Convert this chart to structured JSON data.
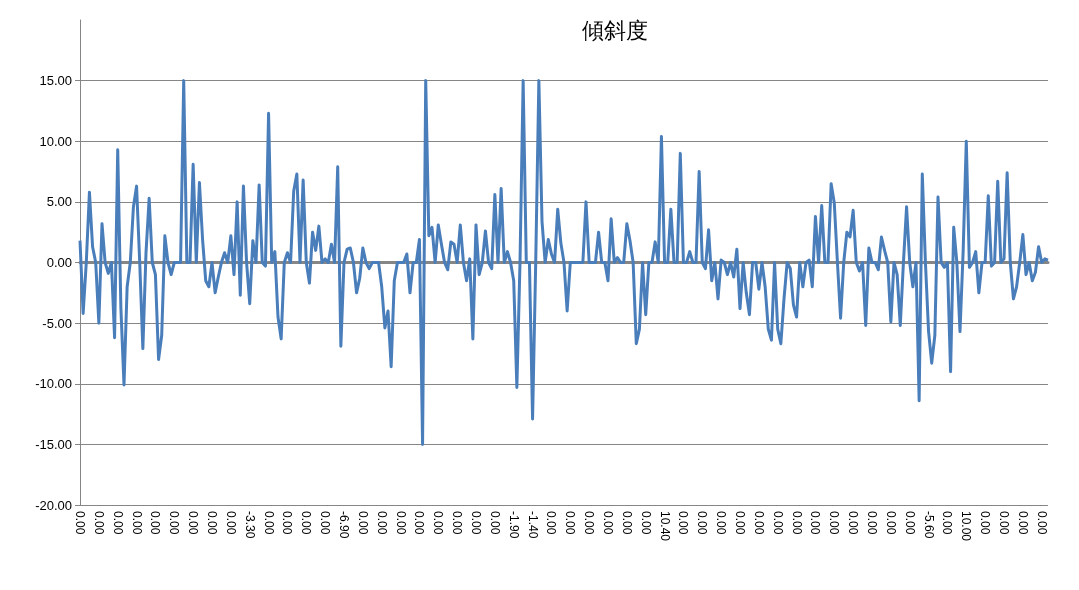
{
  "chart_data": {
    "type": "line",
    "title": "傾斜度",
    "categories": [
      "0.00",
      null,
      null,
      null,
      null,
      null,
      "0.00",
      null,
      null,
      null,
      null,
      null,
      "0.00",
      null,
      null,
      null,
      null,
      null,
      "0.00",
      null,
      null,
      null,
      null,
      null,
      "0.00",
      null,
      null,
      null,
      null,
      null,
      "0.00",
      null,
      null,
      null,
      null,
      null,
      "0.00",
      null,
      null,
      null,
      null,
      null,
      "0.00",
      null,
      null,
      null,
      null,
      null,
      "0.00",
      null,
      null,
      null,
      null,
      null,
      "-3.30",
      null,
      null,
      null,
      null,
      null,
      "0.00",
      null,
      null,
      null,
      null,
      null,
      "0.00",
      null,
      null,
      null,
      null,
      null,
      "0.00",
      null,
      null,
      null,
      null,
      null,
      "0.00",
      null,
      null,
      null,
      null,
      null,
      "-6.90",
      null,
      null,
      null,
      null,
      null,
      "0.00",
      null,
      null,
      null,
      null,
      null,
      "0.00",
      null,
      null,
      null,
      null,
      null,
      "0.00",
      null,
      null,
      null,
      null,
      null,
      "0.00",
      null,
      null,
      null,
      null,
      null,
      "0.00",
      null,
      null,
      null,
      null,
      null,
      "0.00",
      null,
      null,
      null,
      null,
      null,
      "0.00",
      null,
      null,
      null,
      null,
      null,
      "0.00",
      null,
      null,
      null,
      null,
      null,
      "-1.90",
      null,
      null,
      null,
      null,
      null,
      "-1.40",
      null,
      null,
      null,
      null,
      null,
      "0.00",
      null,
      null,
      null,
      null,
      null,
      "0.00",
      null,
      null,
      null,
      null,
      null,
      "0.00",
      null,
      null,
      null,
      null,
      null,
      "0.00",
      null,
      null,
      null,
      null,
      null,
      "0.00",
      null,
      null,
      null,
      null,
      null,
      "0.00",
      null,
      null,
      null,
      null,
      null,
      "10.40",
      null,
      null,
      null,
      null,
      null,
      "0.00",
      null,
      null,
      null,
      null,
      null,
      "0.00",
      null,
      null,
      null,
      null,
      null,
      "0.00",
      null,
      null,
      null,
      null,
      null,
      "0.00",
      null,
      null,
      null,
      null,
      null,
      "0.00",
      null,
      null,
      null,
      null,
      null,
      "0.00",
      null,
      null,
      null,
      null,
      null,
      "0.00",
      null,
      null,
      null,
      null,
      null,
      "0.00",
      null,
      null,
      null,
      null,
      null,
      "0.00",
      null,
      null,
      null,
      null,
      null,
      "0.00",
      null,
      null,
      null,
      null,
      null,
      "0.00",
      null,
      null,
      null,
      null,
      null,
      "0.00",
      null,
      null,
      null,
      null,
      null,
      "0.00",
      null,
      null,
      null,
      null,
      null,
      "-5.60",
      null,
      null,
      null,
      null,
      null,
      "0.00",
      null,
      null,
      null,
      null,
      null,
      "10.00",
      null,
      null,
      null,
      null,
      null,
      "0.00",
      null,
      null,
      null,
      null,
      null,
      "0.00",
      null,
      null,
      null,
      null,
      null,
      "0.00",
      null,
      null,
      null,
      null,
      null,
      "0.00",
      null,
      null
    ],
    "series": [
      {
        "color": "#4a7ebb",
        "values": [
          1.8,
          -4.2,
          0,
          5.8,
          1.3,
          0,
          -5.0,
          3.2,
          0,
          -0.9,
          0,
          -6.2,
          9.3,
          -3.7,
          -10.1,
          -2,
          0,
          4.6,
          6.3,
          0,
          -7.1,
          0.8,
          5.3,
          0,
          -1,
          -8.0,
          -6.0,
          2.2,
          0,
          -1.0,
          0,
          0,
          0,
          15,
          0,
          0,
          8.1,
          0,
          6.6,
          1.9,
          -1.5,
          -2.0,
          0,
          -2.5,
          -1.2,
          0,
          0.8,
          0,
          2.2,
          -1,
          5.0,
          -2.7,
          6.3,
          0,
          -3.4,
          1.8,
          0,
          6.4,
          0,
          -0.3,
          12.3,
          0,
          0.9,
          -4.5,
          -6.3,
          0,
          0.8,
          0,
          5.9,
          7.3,
          0,
          6.8,
          0,
          -1.7,
          2.5,
          1.0,
          3.0,
          0,
          0.3,
          0,
          1.5,
          0,
          7.9,
          -6.9,
          0,
          1.1,
          1.2,
          0,
          -2.5,
          -1.3,
          1.2,
          0,
          -0.5,
          0,
          0,
          0,
          -2,
          -5.4,
          -4,
          -8.6,
          -1.5,
          0,
          0,
          0,
          0.7,
          -2.5,
          0,
          0,
          1.9,
          -15,
          15,
          2.2,
          2.9,
          0,
          3.1,
          1.5,
          0,
          -0.6,
          1.7,
          1.5,
          0,
          3.1,
          0,
          -1.5,
          0.3,
          -6.3,
          3.1,
          -1,
          0,
          2.6,
          0,
          -0.5,
          5.6,
          0,
          6.1,
          0,
          0.9,
          0,
          -1.5,
          -10.3,
          0,
          15,
          0,
          0,
          -12.9,
          0,
          15,
          3.4,
          0,
          1.9,
          0.7,
          0,
          4.4,
          1.6,
          0,
          -4.0,
          0,
          0,
          0,
          0,
          0,
          5.0,
          0,
          0,
          0,
          2.5,
          0,
          0,
          -1.5,
          3.6,
          0,
          0.4,
          0,
          0,
          3.2,
          1.8,
          0,
          -6.7,
          -5.5,
          0,
          -4.3,
          0,
          0,
          1.7,
          0,
          10.4,
          0,
          0,
          4.4,
          0,
          0,
          9.0,
          0,
          0,
          0.9,
          0,
          0,
          7.5,
          0,
          -0.5,
          2.7,
          -1.5,
          0,
          -3.0,
          0.2,
          0,
          -1,
          0,
          -1.2,
          1.1,
          -3.8,
          0,
          -2.5,
          -4.3,
          0,
          0,
          -2.2,
          0,
          -2,
          -5.5,
          -6.4,
          0,
          -5.5,
          -6.7,
          -3.0,
          0,
          -0.5,
          -3.5,
          -4.5,
          0,
          -2,
          0,
          0.2,
          -2.0,
          3.8,
          0,
          4.7,
          0,
          0,
          6.5,
          4.9,
          0,
          -4.6,
          0,
          2.5,
          2.1,
          4.3,
          0,
          -0.7,
          0,
          -5.2,
          1.2,
          0,
          0,
          -0.6,
          2.1,
          1.0,
          0,
          -4.9,
          0,
          -1.0,
          -5.2,
          0,
          4.6,
          0,
          -2.0,
          0,
          -11.4,
          7.3,
          0,
          -5.7,
          -8.3,
          -6.0,
          5.4,
          0,
          -0.4,
          0,
          -9.0,
          2.9,
          0,
          -5.7,
          0.9,
          10.0,
          -0.4,
          0,
          0.9,
          -2.5,
          0,
          0,
          5.5,
          -0.3,
          0,
          6.7,
          0,
          0.3,
          7.4,
          0,
          -3.0,
          -2,
          0,
          2.3,
          -1.0,
          0,
          -1.5,
          -0.8,
          1.3,
          0,
          0.3,
          0.2
        ]
      }
    ],
    "ylim": [
      -20,
      20
    ],
    "yticks": [
      {
        "value": -20,
        "label": "-20.00"
      },
      {
        "value": -15,
        "label": "-15.00"
      },
      {
        "value": -10,
        "label": "-10.00"
      },
      {
        "value": -5,
        "label": "-5.00"
      },
      {
        "value": 0,
        "label": "0.00"
      },
      {
        "value": 5,
        "label": "5.00"
      },
      {
        "value": 10,
        "label": "10.00"
      },
      {
        "value": 15,
        "label": "15.00"
      }
    ],
    "grid": "y",
    "marker": "none",
    "line_style": "solid"
  }
}
